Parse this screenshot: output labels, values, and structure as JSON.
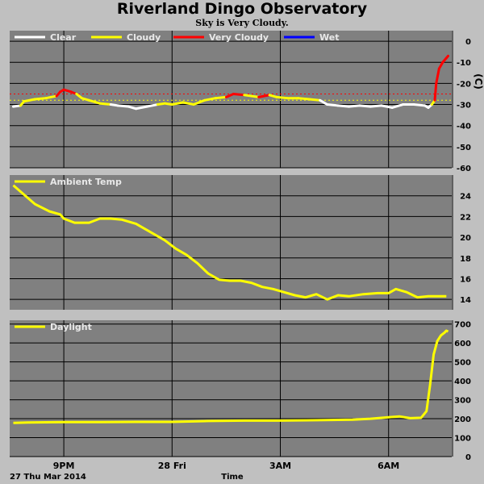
{
  "title": "Riverland Dingo Observatory",
  "subtitle": "Sky is Very Cloudy.",
  "x_axis": {
    "label": "Time",
    "date_label": "27 Thu Mar 2014",
    "ticks": [
      {
        "label": "9PM",
        "hour": 21
      },
      {
        "label": "28 Fri",
        "hour": 24
      },
      {
        "label": "3AM",
        "hour": 27
      },
      {
        "label": "6AM",
        "hour": 30
      }
    ],
    "range_hours": [
      19.5,
      31.75
    ]
  },
  "colors": {
    "panel_bg": "#808080",
    "clear": "#ffffff",
    "cloudy": "#ffff00",
    "very_cloudy": "#ff0000",
    "wet": "#0000ff",
    "threshold_red": "#ff0000",
    "threshold_yellow": "#ffff00"
  },
  "chart_data": [
    {
      "id": "sky",
      "type": "line",
      "unit": "C",
      "ylim": [
        -60,
        5
      ],
      "yticks": [
        0,
        -10,
        -20,
        -30,
        -40,
        -50,
        -60
      ],
      "thresholds": [
        -25,
        -28
      ],
      "legend": [
        {
          "name": "Clear",
          "color": "#ffffff"
        },
        {
          "name": "Cloudy",
          "color": "#ffff00"
        },
        {
          "name": "Very Cloudy",
          "color": "#ff0000"
        },
        {
          "name": "Wet",
          "color": "#0000ff"
        }
      ],
      "series": [
        {
          "name": "Sky",
          "points": [
            [
              19.6,
              -31,
              "clear"
            ],
            [
              19.8,
              -30.5,
              "clear"
            ],
            [
              19.9,
              -28.5,
              "cloudy"
            ],
            [
              20.2,
              -27.5,
              "cloudy"
            ],
            [
              20.5,
              -27,
              "cloudy"
            ],
            [
              20.8,
              -26,
              "cloudy"
            ],
            [
              20.9,
              -24,
              "very_cloudy"
            ],
            [
              21.0,
              -23,
              "very_cloudy"
            ],
            [
              21.2,
              -24,
              "very_cloudy"
            ],
            [
              21.35,
              -25,
              "very_cloudy"
            ],
            [
              21.5,
              -27,
              "cloudy"
            ],
            [
              21.7,
              -28,
              "cloudy"
            ],
            [
              22.0,
              -29.5,
              "cloudy"
            ],
            [
              22.3,
              -30,
              "cloudy"
            ],
            [
              22.5,
              -30.5,
              "clear"
            ],
            [
              22.8,
              -31,
              "clear"
            ],
            [
              23.0,
              -32,
              "clear"
            ],
            [
              23.3,
              -31,
              "clear"
            ],
            [
              23.6,
              -30,
              "clear"
            ],
            [
              23.8,
              -29.5,
              "cloudy"
            ],
            [
              24.0,
              -30,
              "cloudy"
            ],
            [
              24.3,
              -29,
              "cloudy"
            ],
            [
              24.6,
              -30,
              "cloudy"
            ],
            [
              24.9,
              -28,
              "cloudy"
            ],
            [
              25.2,
              -27,
              "cloudy"
            ],
            [
              25.5,
              -26.5,
              "cloudy"
            ],
            [
              25.7,
              -25,
              "very_cloudy"
            ],
            [
              26.0,
              -25.5,
              "very_cloudy"
            ],
            [
              26.2,
              -26,
              "cloudy"
            ],
            [
              26.4,
              -26.5,
              "cloudy"
            ],
            [
              26.7,
              -25.5,
              "very_cloudy"
            ],
            [
              26.9,
              -26.5,
              "cloudy"
            ],
            [
              27.2,
              -27,
              "cloudy"
            ],
            [
              27.5,
              -27,
              "cloudy"
            ],
            [
              27.8,
              -27.5,
              "cloudy"
            ],
            [
              28.1,
              -28,
              "cloudy"
            ],
            [
              28.3,
              -30,
              "clear"
            ],
            [
              28.6,
              -30.5,
              "clear"
            ],
            [
              28.9,
              -31,
              "clear"
            ],
            [
              29.2,
              -30.5,
              "clear"
            ],
            [
              29.5,
              -31,
              "clear"
            ],
            [
              29.8,
              -30.5,
              "clear"
            ],
            [
              30.1,
              -31.5,
              "clear"
            ],
            [
              30.4,
              -30,
              "clear"
            ],
            [
              30.7,
              -30,
              "clear"
            ],
            [
              31.0,
              -30.5,
              "clear"
            ],
            [
              31.1,
              -31.5,
              "clear"
            ],
            [
              31.2,
              -30,
              "clear"
            ],
            [
              31.28,
              -28,
              "cloudy"
            ],
            [
              31.32,
              -20,
              "very_cloudy"
            ],
            [
              31.4,
              -13,
              "very_cloudy"
            ],
            [
              31.5,
              -10,
              "very_cloudy"
            ],
            [
              31.6,
              -8,
              "very_cloudy"
            ],
            [
              31.65,
              -7,
              "very_cloudy"
            ]
          ]
        }
      ]
    },
    {
      "id": "ambient",
      "type": "line",
      "ylim": [
        13,
        26
      ],
      "yticks": [
        14,
        16,
        18,
        20,
        22,
        24
      ],
      "legend": [
        {
          "name": "Ambient Temp",
          "color": "#ffff00"
        }
      ],
      "series": [
        {
          "name": "Ambient Temp",
          "x": [
            19.6,
            19.9,
            20.2,
            20.6,
            20.9,
            21.0,
            21.3,
            21.7,
            22.0,
            22.3,
            22.6,
            23.0,
            23.4,
            23.8,
            24.1,
            24.4,
            24.7,
            25.0,
            25.3,
            25.6,
            25.9,
            26.2,
            26.5,
            26.8,
            27.1,
            27.4,
            27.7,
            28.0,
            28.3,
            28.6,
            28.9,
            29.3,
            29.7,
            30.0,
            30.2,
            30.5,
            30.8,
            31.1,
            31.3,
            31.6
          ],
          "y": [
            25.0,
            24.1,
            23.2,
            22.5,
            22.2,
            21.8,
            21.4,
            21.4,
            21.8,
            21.8,
            21.7,
            21.3,
            20.5,
            19.7,
            18.9,
            18.3,
            17.5,
            16.5,
            15.9,
            15.8,
            15.8,
            15.6,
            15.2,
            15.0,
            14.7,
            14.4,
            14.2,
            14.5,
            14.0,
            14.4,
            14.3,
            14.5,
            14.6,
            14.6,
            15.0,
            14.7,
            14.2,
            14.3,
            14.3,
            14.3
          ]
        }
      ]
    },
    {
      "id": "daylight",
      "type": "line",
      "ylim": [
        0,
        720
      ],
      "yticks": [
        0,
        100,
        200,
        300,
        400,
        500,
        600,
        700
      ],
      "legend": [
        {
          "name": "Daylight",
          "color": "#ffff00"
        }
      ],
      "series": [
        {
          "name": "Daylight",
          "x": [
            19.6,
            20.0,
            21.0,
            22.0,
            23.0,
            24.0,
            25.0,
            26.0,
            27.0,
            28.0,
            29.0,
            29.5,
            30.0,
            30.3,
            30.6,
            30.9,
            31.05,
            31.15,
            31.25,
            31.35,
            31.45,
            31.55,
            31.6,
            31.65
          ],
          "y": [
            178,
            180,
            182,
            182,
            183,
            183,
            188,
            190,
            190,
            192,
            195,
            200,
            208,
            212,
            203,
            205,
            240,
            380,
            540,
            610,
            640,
            655,
            665,
            660
          ]
        }
      ]
    }
  ]
}
